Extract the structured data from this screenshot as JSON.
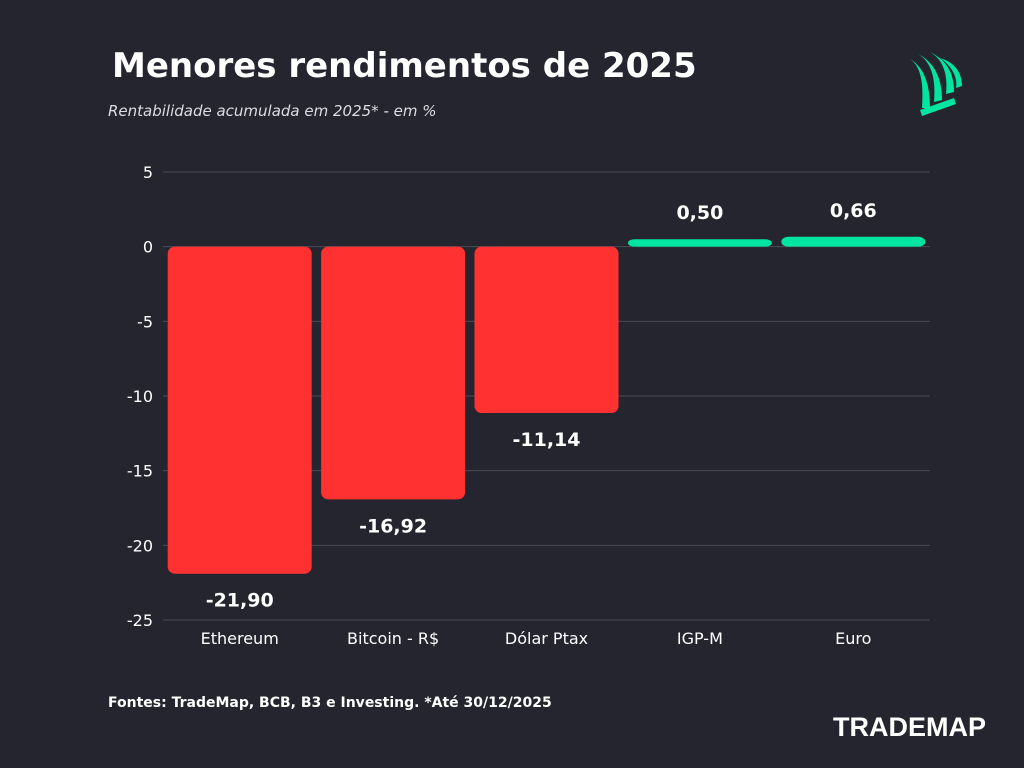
{
  "header": {
    "title": "Menores rendimentos de 2025",
    "subtitle": "Rentabilidade acumulada em 2025* - em %"
  },
  "footer": {
    "source": "Fontes: TradeMap, BCB, B3 e Investing. *Até 30/12/2025",
    "brand": "TRADEMAP"
  },
  "logo": {
    "icon": "trademap-leaf-icon"
  },
  "colors": {
    "background": "#24252f",
    "negative": "#ff3131",
    "positive": "#00e6a0",
    "grid": "#4a4b57",
    "text": "#ffffff"
  },
  "chart_data": {
    "type": "bar",
    "categories": [
      "Ethereum",
      "Bitcoin - R$",
      "Dólar Ptax",
      "IGP-M",
      "Euro"
    ],
    "values": [
      -21.9,
      -16.92,
      -11.14,
      0.5,
      0.66
    ],
    "value_labels": [
      "-21,90",
      "-16,92",
      "-11,14",
      "0,50",
      "0,66"
    ],
    "yticks": [
      5,
      0,
      -5,
      -10,
      -15,
      -20,
      -25
    ],
    "ylim": [
      -25,
      5
    ],
    "grid": true,
    "legend": "none"
  }
}
